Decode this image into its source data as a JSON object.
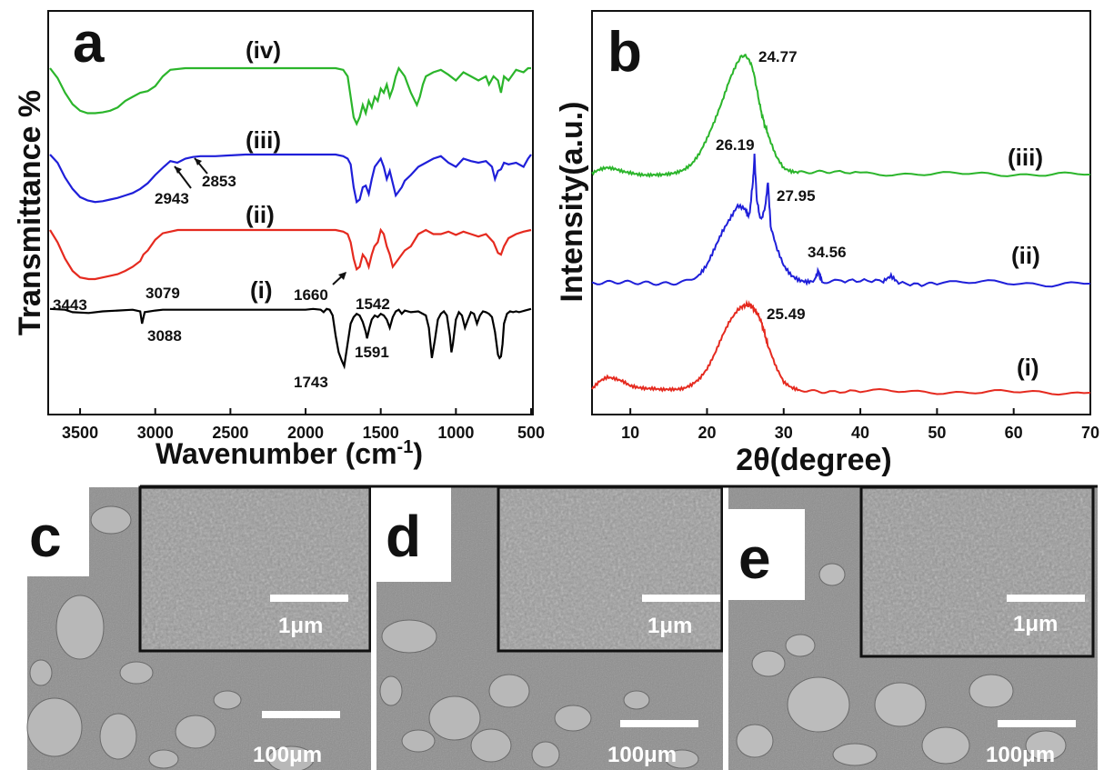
{
  "chart_data": [
    {
      "panel": "a",
      "type": "line",
      "xlabel": "Wavenumber (cm",
      "xlabel_sup": "-1",
      "xlabel_close": ")",
      "ylabel": "Transmittance %",
      "xlim": [
        3700,
        500
      ],
      "x_ticks": [
        "3500",
        "3000",
        "2500",
        "2000",
        "1500",
        "1000",
        "500"
      ],
      "grid": false,
      "series": [
        {
          "name": "(i)",
          "color": "#000000",
          "offset": 0.0,
          "x": [
            3700,
            3600,
            3550,
            3443,
            3350,
            3250,
            3150,
            3100,
            3088,
            3070,
            3000,
            2950,
            2900,
            2800,
            2700,
            2600,
            2500,
            2400,
            2300,
            2200,
            2100,
            2000,
            1950,
            1900,
            1880,
            1860,
            1840,
            1820,
            1800,
            1780,
            1760,
            1743,
            1725,
            1700,
            1680,
            1660,
            1640,
            1620,
            1600,
            1591,
            1575,
            1560,
            1540,
            1520,
            1500,
            1480,
            1460,
            1440,
            1420,
            1400,
            1380,
            1360,
            1340,
            1300,
            1250,
            1200,
            1180,
            1160,
            1140,
            1120,
            1100,
            1080,
            1060,
            1040,
            1030,
            1020,
            1000,
            980,
            960,
            940,
            920,
            900,
            880,
            860,
            840,
            820,
            800,
            780,
            760,
            740,
            720,
            710,
            700,
            690,
            680,
            660,
            640,
            620,
            600,
            580,
            560,
            540,
            520,
            500
          ],
          "y": [
            0.02,
            0.03,
            0.06,
            0.07,
            0.05,
            0.04,
            0.03,
            0.05,
            0.2,
            0.06,
            0.04,
            0.03,
            0.03,
            0.03,
            0.03,
            0.03,
            0.03,
            0.03,
            0.03,
            0.03,
            0.03,
            0.03,
            0.02,
            0.03,
            0.06,
            0.02,
            0.03,
            0.1,
            0.35,
            0.55,
            0.65,
            0.72,
            0.5,
            0.2,
            0.12,
            0.08,
            0.1,
            0.18,
            0.3,
            0.38,
            0.25,
            0.15,
            0.1,
            0.12,
            0.08,
            0.1,
            0.15,
            0.25,
            0.12,
            0.05,
            0.03,
            0.08,
            0.04,
            0.06,
            0.05,
            0.1,
            0.25,
            0.62,
            0.4,
            0.15,
            0.08,
            0.05,
            0.1,
            0.35,
            0.55,
            0.45,
            0.15,
            0.06,
            0.1,
            0.25,
            0.15,
            0.06,
            0.08,
            0.2,
            0.1,
            0.05,
            0.06,
            0.08,
            0.12,
            0.3,
            0.58,
            0.62,
            0.6,
            0.45,
            0.2,
            0.08,
            0.05,
            0.06,
            0.05,
            0.06,
            0.05,
            0.04,
            0.03,
            0.02
          ]
        },
        {
          "name": "(ii)",
          "color": "#e52a1f",
          "offset": 1.0,
          "x": [
            3700,
            3650,
            3600,
            3550,
            3500,
            3443,
            3400,
            3350,
            3300,
            3250,
            3200,
            3150,
            3100,
            3079,
            3050,
            3000,
            2950,
            2900,
            2850,
            2800,
            2700,
            2600,
            2500,
            2400,
            2300,
            2200,
            2100,
            2000,
            1900,
            1850,
            1800,
            1750,
            1720,
            1700,
            1680,
            1660,
            1640,
            1620,
            1600,
            1580,
            1560,
            1542,
            1520,
            1500,
            1480,
            1460,
            1440,
            1420,
            1400,
            1380,
            1360,
            1340,
            1300,
            1250,
            1200,
            1150,
            1100,
            1050,
            1000,
            950,
            900,
            850,
            800,
            750,
            720,
            700,
            680,
            650,
            600,
            550,
            500
          ],
          "y": [
            0.0,
            0.15,
            0.35,
            0.5,
            0.58,
            0.6,
            0.6,
            0.58,
            0.56,
            0.54,
            0.5,
            0.45,
            0.38,
            0.3,
            0.25,
            0.12,
            0.04,
            0.02,
            0.0,
            0.0,
            0.0,
            0.0,
            0.0,
            0.0,
            0.0,
            0.0,
            0.0,
            0.0,
            0.0,
            0.0,
            0.0,
            0.02,
            0.05,
            0.15,
            0.35,
            0.48,
            0.45,
            0.3,
            0.35,
            0.45,
            0.3,
            0.2,
            0.15,
            0.0,
            0.05,
            0.2,
            0.3,
            0.45,
            0.4,
            0.35,
            0.3,
            0.25,
            0.2,
            0.05,
            0.0,
            0.05,
            0.05,
            0.02,
            0.06,
            0.02,
            0.05,
            0.08,
            0.05,
            0.15,
            0.28,
            0.3,
            0.2,
            0.1,
            0.05,
            0.02,
            0.0
          ]
        },
        {
          "name": "(iii)",
          "color": "#1f1fd9",
          "offset": 2.0,
          "x": [
            3700,
            3650,
            3600,
            3550,
            3500,
            3450,
            3400,
            3350,
            3300,
            3250,
            3200,
            3150,
            3100,
            3050,
            3000,
            2943,
            2900,
            2853,
            2800,
            2750,
            2700,
            2600,
            2500,
            2400,
            2300,
            2200,
            2100,
            2000,
            1900,
            1800,
            1750,
            1720,
            1700,
            1680,
            1660,
            1640,
            1620,
            1600,
            1580,
            1560,
            1540,
            1520,
            1500,
            1480,
            1460,
            1440,
            1420,
            1400,
            1380,
            1360,
            1340,
            1300,
            1250,
            1200,
            1150,
            1100,
            1050,
            1000,
            950,
            900,
            850,
            800,
            760,
            740,
            720,
            700,
            680,
            650,
            600,
            550,
            520,
            500
          ],
          "y": [
            0.0,
            0.1,
            0.28,
            0.42,
            0.52,
            0.56,
            0.58,
            0.57,
            0.55,
            0.53,
            0.5,
            0.47,
            0.42,
            0.35,
            0.25,
            0.15,
            0.08,
            0.1,
            0.05,
            0.03,
            0.02,
            0.02,
            0.01,
            0.0,
            0.0,
            0.0,
            0.0,
            0.0,
            0.0,
            0.0,
            0.02,
            0.05,
            0.12,
            0.4,
            0.58,
            0.55,
            0.4,
            0.38,
            0.48,
            0.3,
            0.15,
            0.1,
            0.05,
            0.15,
            0.3,
            0.2,
            0.35,
            0.5,
            0.45,
            0.4,
            0.32,
            0.25,
            0.15,
            0.1,
            0.05,
            0.02,
            0.1,
            0.15,
            0.05,
            0.08,
            0.1,
            0.08,
            0.15,
            0.3,
            0.2,
            0.18,
            0.1,
            0.12,
            0.1,
            0.15,
            0.05,
            0.0
          ]
        },
        {
          "name": "(iv)",
          "color": "#2bb52b",
          "offset": 3.0,
          "x": [
            3700,
            3650,
            3600,
            3550,
            3500,
            3450,
            3400,
            3350,
            3300,
            3250,
            3200,
            3150,
            3100,
            3050,
            3000,
            2950,
            2900,
            2800,
            2700,
            2600,
            2500,
            2400,
            2300,
            2200,
            2100,
            2000,
            1900,
            1800,
            1750,
            1720,
            1700,
            1680,
            1660,
            1640,
            1620,
            1600,
            1580,
            1560,
            1540,
            1520,
            1500,
            1480,
            1460,
            1440,
            1420,
            1400,
            1380,
            1360,
            1340,
            1320,
            1300,
            1260,
            1240,
            1220,
            1200,
            1150,
            1100,
            1050,
            1000,
            950,
            900,
            850,
            800,
            780,
            750,
            720,
            700,
            680,
            650,
            600,
            550,
            520,
            500
          ],
          "y": [
            0.0,
            0.12,
            0.3,
            0.44,
            0.52,
            0.55,
            0.55,
            0.54,
            0.52,
            0.48,
            0.4,
            0.35,
            0.3,
            0.28,
            0.22,
            0.1,
            0.02,
            0.0,
            0.0,
            0.0,
            0.0,
            0.0,
            0.0,
            0.0,
            0.0,
            0.0,
            0.0,
            0.0,
            0.02,
            0.1,
            0.35,
            0.6,
            0.68,
            0.6,
            0.45,
            0.55,
            0.4,
            0.48,
            0.35,
            0.4,
            0.25,
            0.3,
            0.2,
            0.35,
            0.25,
            0.1,
            0.0,
            0.05,
            0.1,
            0.2,
            0.3,
            0.45,
            0.35,
            0.2,
            0.1,
            0.05,
            0.02,
            0.08,
            0.15,
            0.05,
            0.1,
            0.15,
            0.1,
            0.2,
            0.1,
            0.15,
            0.3,
            0.1,
            0.15,
            0.02,
            0.05,
            0.0,
            0.0
          ]
        }
      ],
      "annotations": [
        "3443",
        "3079",
        "3088",
        "1660",
        "1542",
        "1591",
        "1743",
        "2943",
        "2853"
      ]
    },
    {
      "panel": "b",
      "type": "line",
      "xlabel": "2θ(degree)",
      "ylabel": "Intensity(a.u.)",
      "xlim": [
        5,
        70
      ],
      "x_ticks": [
        "10",
        "20",
        "30",
        "40",
        "50",
        "60",
        "70"
      ],
      "grid": false,
      "series": [
        {
          "name": "(i)",
          "color": "#e52a1f",
          "offset": 0.0,
          "x": [
            5,
            6,
            7,
            8,
            9,
            10,
            11,
            12,
            13,
            14,
            15,
            16,
            17,
            18,
            19,
            20,
            21,
            22,
            23,
            24,
            24.5,
            25,
            25.49,
            26,
            26.5,
            27,
            27.5,
            28,
            29,
            30,
            31,
            32,
            34,
            36,
            40,
            45,
            50,
            55,
            60,
            65,
            70
          ],
          "y": [
            0.1,
            0.25,
            0.32,
            0.28,
            0.22,
            0.12,
            0.08,
            0.06,
            0.06,
            0.05,
            0.06,
            0.07,
            0.1,
            0.18,
            0.3,
            0.5,
            0.8,
            1.15,
            1.45,
            1.65,
            1.72,
            1.75,
            1.76,
            1.7,
            1.6,
            1.45,
            1.2,
            0.9,
            0.5,
            0.2,
            0.1,
            0.06,
            0.05,
            0.04,
            0.03,
            0.02,
            0.02,
            0.01,
            0.01,
            0.01,
            0.0
          ]
        },
        {
          "name": "(ii)",
          "color": "#1f1fd9",
          "offset": 1.0,
          "x": [
            5,
            7,
            9,
            11,
            13,
            15,
            17,
            19,
            20,
            21,
            22,
            23,
            24,
            25,
            25.5,
            26,
            26.19,
            26.5,
            27,
            27.5,
            27.95,
            28.3,
            29,
            30,
            31,
            32,
            33,
            34,
            34.56,
            35,
            37,
            40,
            43,
            44,
            45,
            48,
            50,
            55,
            60,
            65,
            70
          ],
          "y": [
            0.0,
            0.0,
            0.0,
            0.0,
            0.01,
            0.02,
            0.05,
            0.15,
            0.3,
            0.55,
            0.8,
            1.0,
            1.2,
            1.15,
            1.05,
            1.6,
            2.0,
            1.3,
            1.0,
            1.15,
            1.6,
            0.9,
            0.6,
            0.3,
            0.15,
            0.08,
            0.05,
            0.06,
            0.2,
            0.04,
            0.03,
            0.02,
            0.03,
            0.12,
            0.02,
            0.01,
            0.02,
            0.01,
            0.01,
            0.0,
            0.0
          ]
        },
        {
          "name": "(iii)",
          "color": "#2bb52b",
          "offset": 2.0,
          "x": [
            5,
            6,
            7,
            8,
            9,
            10,
            11,
            12,
            13,
            14,
            15,
            16,
            17,
            18,
            19,
            20,
            21,
            22,
            23,
            24,
            24.77,
            25.5,
            26,
            26.5,
            27,
            27.5,
            28,
            29,
            30,
            31,
            32,
            34,
            36,
            40,
            45,
            50,
            55,
            60,
            65,
            70
          ],
          "y": [
            0.0,
            0.08,
            0.12,
            0.1,
            0.06,
            0.04,
            0.02,
            0.01,
            0.02,
            0.02,
            0.03,
            0.05,
            0.1,
            0.2,
            0.4,
            0.7,
            1.05,
            1.45,
            1.9,
            2.25,
            2.4,
            2.3,
            2.1,
            1.7,
            1.3,
            1.0,
            0.8,
            0.4,
            0.15,
            0.08,
            0.05,
            0.04,
            0.03,
            0.02,
            0.02,
            0.01,
            0.01,
            0.01,
            0.0,
            0.0
          ]
        }
      ],
      "annotations": [
        "24.77",
        "26.19",
        "27.95",
        "34.56",
        "25.49"
      ]
    }
  ],
  "panels": {
    "a": {
      "letter": "a",
      "labels": {
        "iv": "(iv)",
        "iii": "(iii)",
        "ii": "(ii)",
        "i": "(i)"
      }
    },
    "b": {
      "letter": "b",
      "labels": {
        "iii": "(iii)",
        "ii": "(ii)",
        "i": "(i)"
      }
    },
    "c": {
      "letter": "c",
      "inset_scale": "1μm",
      "main_scale": "100μm"
    },
    "d": {
      "letter": "d",
      "inset_scale": "1μm",
      "main_scale": "100μm"
    },
    "e": {
      "letter": "e",
      "inset_scale": "1μm",
      "main_scale": "100μm"
    }
  },
  "colors": {
    "black": "#000000",
    "red": "#e52a1f",
    "blue": "#1f1fd9",
    "green": "#2bb52b",
    "sem_bg": "#8a8a8a"
  }
}
